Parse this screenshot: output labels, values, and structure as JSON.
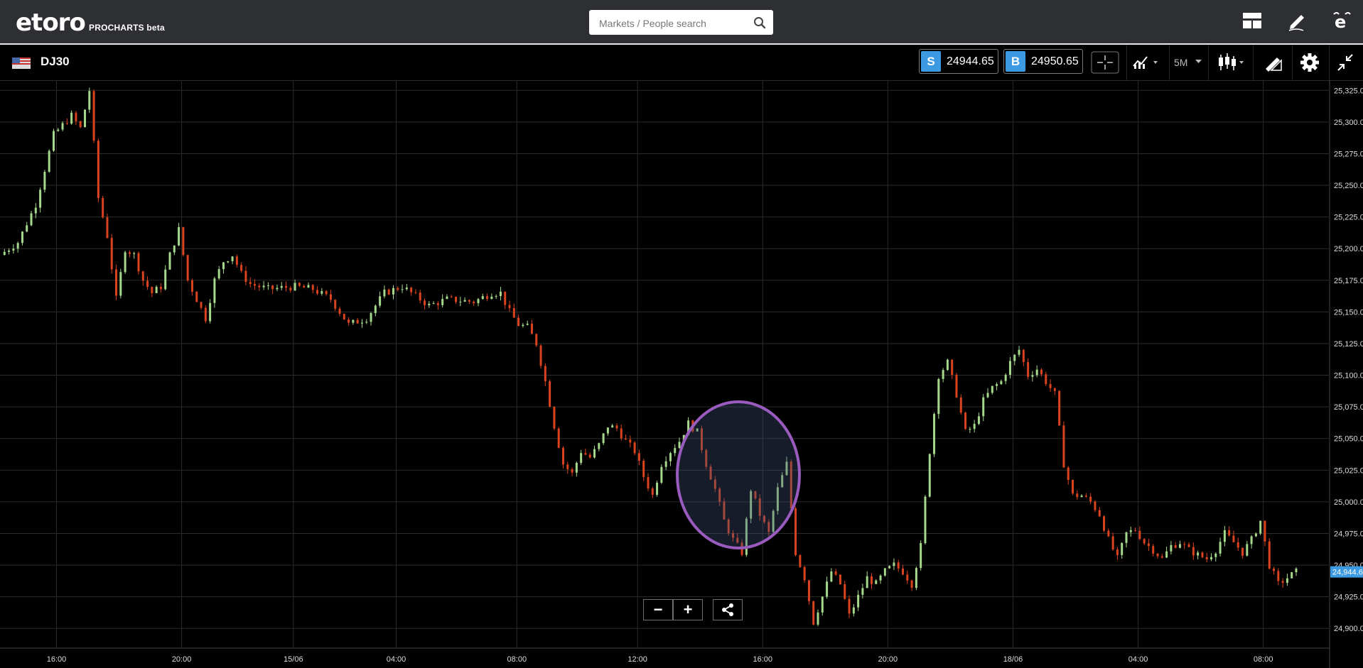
{
  "header": {
    "logo_text": "etoro",
    "logo_product": "PROCHARTS",
    "logo_badge": "beta",
    "search": {
      "placeholder": "Markets / People search"
    },
    "icons": [
      "layout-icon",
      "pencil-icon",
      "etoro-e-icon"
    ]
  },
  "toolbar": {
    "symbol": "DJ30",
    "sell": {
      "label": "S",
      "price": "24944.65"
    },
    "buy": {
      "label": "B",
      "price": "24950.65"
    },
    "timeframe": "5M",
    "icons": [
      "crosshair-icon",
      "indicators-icon",
      "candlestick-icon",
      "drawing-tools-icon",
      "gear-icon",
      "collapse-icon"
    ]
  },
  "controls": {
    "zoom_out": "−",
    "zoom_in": "+",
    "share_icon": "share-icon"
  },
  "colors": {
    "up": "#a6d88c",
    "down": "#d9431e",
    "accent": "#3b9ae1",
    "highlight_ring": "#9a5bbf"
  },
  "chart_data": {
    "type": "candlestick",
    "symbol": "DJ30",
    "timeframe": "5M",
    "ylim": [
      24885,
      25333
    ],
    "y_ticks": [
      "25,325.0",
      "25,300.0",
      "25,275.0",
      "25,250.0",
      "25,225.0",
      "25,200.0",
      "25,175.0",
      "25,150.0",
      "25,125.0",
      "25,100.0",
      "25,075.0",
      "25,050.0",
      "25,025.0",
      "25,000.0",
      "24,975.0",
      "24,950.0",
      "24,925.0",
      "24,900.0"
    ],
    "x_ticks": [
      "16:00",
      "20:00",
      "15/06",
      "04:00",
      "08:00",
      "12:00",
      "16:00",
      "20:00",
      "18/06",
      "04:00",
      "08:00"
    ],
    "current_price_label": "24,944.6",
    "current_price": 24944.65,
    "grid": true,
    "price_path": [
      [
        0,
        25195
      ],
      [
        4,
        25205
      ],
      [
        8,
        25235
      ],
      [
        12,
        25290
      ],
      [
        16,
        25305
      ],
      [
        18,
        25295
      ],
      [
        20,
        25325
      ],
      [
        22,
        25240
      ],
      [
        24,
        25210
      ],
      [
        26,
        25160
      ],
      [
        28,
        25200
      ],
      [
        30,
        25195
      ],
      [
        32,
        25175
      ],
      [
        34,
        25165
      ],
      [
        36,
        25170
      ],
      [
        38,
        25195
      ],
      [
        40,
        25215
      ],
      [
        42,
        25175
      ],
      [
        44,
        25160
      ],
      [
        46,
        25145
      ],
      [
        48,
        25175
      ],
      [
        50,
        25190
      ],
      [
        52,
        25195
      ],
      [
        54,
        25180
      ],
      [
        56,
        25172
      ],
      [
        60,
        25168
      ],
      [
        66,
        25170
      ],
      [
        70,
        25168
      ],
      [
        74,
        25160
      ],
      [
        78,
        25140
      ],
      [
        82,
        25145
      ],
      [
        86,
        25165
      ],
      [
        90,
        25170
      ],
      [
        96,
        25155
      ],
      [
        100,
        25160
      ],
      [
        106,
        25158
      ],
      [
        110,
        25165
      ],
      [
        112,
        25165
      ],
      [
        114,
        25150
      ],
      [
        116,
        25140
      ],
      [
        118,
        25138
      ],
      [
        120,
        25125
      ],
      [
        122,
        25095
      ],
      [
        124,
        25060
      ],
      [
        126,
        25030
      ],
      [
        128,
        25022
      ],
      [
        130,
        25040
      ],
      [
        132,
        25035
      ],
      [
        134,
        25045
      ],
      [
        136,
        25060
      ],
      [
        138,
        25058
      ],
      [
        140,
        25048
      ],
      [
        142,
        25040
      ],
      [
        144,
        25020
      ],
      [
        146,
        25005
      ],
      [
        148,
        25030
      ],
      [
        150,
        25040
      ],
      [
        152,
        25048
      ],
      [
        154,
        25062
      ],
      [
        156,
        25055
      ],
      [
        158,
        25030
      ],
      [
        160,
        25010
      ],
      [
        162,
        24985
      ],
      [
        164,
        24970
      ],
      [
        166,
        24960
      ],
      [
        168,
        25010
      ],
      [
        170,
        24990
      ],
      [
        172,
        24975
      ],
      [
        174,
        25010
      ],
      [
        176,
        25030
      ],
      [
        178,
        24960
      ],
      [
        180,
        24940
      ],
      [
        182,
        24905
      ],
      [
        184,
        24925
      ],
      [
        186,
        24945
      ],
      [
        188,
        24935
      ],
      [
        190,
        24910
      ],
      [
        192,
        24925
      ],
      [
        194,
        24940
      ],
      [
        196,
        24935
      ],
      [
        198,
        24945
      ],
      [
        200,
        24950
      ],
      [
        202,
        24945
      ],
      [
        204,
        24935
      ],
      [
        206,
        24965
      ],
      [
        208,
        25040
      ],
      [
        210,
        25100
      ],
      [
        212,
        25110
      ],
      [
        214,
        25085
      ],
      [
        216,
        25055
      ],
      [
        218,
        25060
      ],
      [
        220,
        25080
      ],
      [
        222,
        25090
      ],
      [
        224,
        25095
      ],
      [
        226,
        25110
      ],
      [
        228,
        25120
      ],
      [
        230,
        25100
      ],
      [
        232,
        25105
      ],
      [
        234,
        25095
      ],
      [
        236,
        25085
      ],
      [
        238,
        25030
      ],
      [
        240,
        25005
      ],
      [
        242,
        25005
      ],
      [
        244,
        25000
      ],
      [
        246,
        24990
      ],
      [
        248,
        24970
      ],
      [
        250,
        24955
      ],
      [
        252,
        24975
      ],
      [
        254,
        24978
      ],
      [
        256,
        24968
      ],
      [
        258,
        24962
      ],
      [
        260,
        24955
      ],
      [
        262,
        24965
      ],
      [
        264,
        24968
      ],
      [
        266,
        24962
      ],
      [
        268,
        24958
      ],
      [
        270,
        24955
      ],
      [
        272,
        24962
      ],
      [
        274,
        24975
      ],
      [
        276,
        24968
      ],
      [
        278,
        24960
      ],
      [
        280,
        24970
      ],
      [
        282,
        24985
      ],
      [
        284,
        24950
      ],
      [
        286,
        24935
      ],
      [
        288,
        24940
      ],
      [
        290,
        24944.65
      ]
    ]
  }
}
